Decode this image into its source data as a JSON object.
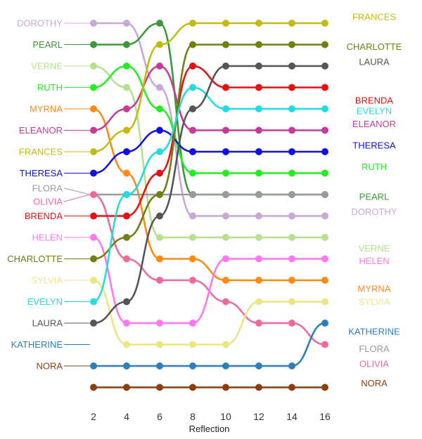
{
  "chart_data": {
    "type": "line",
    "subtype": "bump",
    "title": "",
    "xlabel": "Reflection",
    "ylabel": "",
    "x": [
      2,
      4,
      6,
      8,
      10,
      12,
      14,
      16
    ],
    "xticks": [
      2,
      4,
      6,
      8,
      10,
      12,
      14,
      16
    ],
    "rank_order": "1 = top",
    "grid": false,
    "legend": "direct labels at both ends",
    "series": [
      {
        "name": "DOROTHY",
        "color": "#c7a8d6",
        "ranks": [
          1,
          1,
          4,
          10,
          10,
          10,
          10,
          10
        ]
      },
      {
        "name": "PEARL",
        "color": "#3a9a3a",
        "ranks": [
          2,
          2,
          1,
          9,
          9,
          9,
          9,
          9
        ]
      },
      {
        "name": "VERNE",
        "color": "#b5e08c",
        "ranks": [
          3,
          4,
          11,
          11,
          11,
          11,
          11,
          11
        ]
      },
      {
        "name": "RUTH",
        "color": "#22ee22",
        "ranks": [
          4,
          3,
          5,
          8,
          8,
          8,
          8,
          8
        ]
      },
      {
        "name": "MYRNA",
        "color": "#ff8a12",
        "ranks": [
          5,
          8,
          12,
          12,
          13,
          13,
          13,
          13
        ]
      },
      {
        "name": "ELEANOR",
        "color": "#c43c96",
        "ranks": [
          6,
          5,
          3,
          6,
          6,
          6,
          6,
          6
        ]
      },
      {
        "name": "FRANCES",
        "color": "#c2bc12",
        "ranks": [
          7,
          6,
          2,
          1,
          1,
          1,
          1,
          1
        ]
      },
      {
        "name": "THERESA",
        "color": "#1010e0",
        "ranks": [
          8,
          7,
          6,
          7,
          7,
          7,
          7,
          7
        ]
      },
      {
        "name": "FLORA",
        "color": "#9a9a9a",
        "ranks": [
          9,
          9,
          9,
          9,
          9,
          9,
          9,
          9
        ]
      },
      {
        "name": "OLIVIA",
        "color": "#ee6a9c",
        "ranks": [
          9,
          12,
          13,
          13,
          14,
          15,
          15,
          16
        ]
      },
      {
        "name": "BRENDA",
        "color": "#e81010",
        "ranks": [
          10,
          10,
          8,
          3,
          4,
          4,
          4,
          4
        ]
      },
      {
        "name": "HELEN",
        "color": "#ff77ee",
        "ranks": [
          11,
          15,
          15,
          15,
          12,
          12,
          12,
          12
        ]
      },
      {
        "name": "CHARLOTTE",
        "color": "#6f7f10",
        "ranks": [
          12,
          11,
          9,
          2,
          2,
          2,
          2,
          2
        ]
      },
      {
        "name": "SYLVIA",
        "color": "#ece682",
        "ranks": [
          13,
          16,
          16,
          16,
          16,
          14,
          14,
          14
        ]
      },
      {
        "name": "EVELYN",
        "color": "#22dddd",
        "ranks": [
          14,
          9,
          7,
          4,
          5,
          5,
          5,
          5
        ]
      },
      {
        "name": "LAURA",
        "color": "#555555",
        "ranks": [
          15,
          14,
          10,
          5,
          3,
          3,
          3,
          3
        ]
      },
      {
        "name": "KATHERINE",
        "color": "#2a7fc0",
        "ranks": [
          17,
          17,
          17,
          17,
          17,
          17,
          17,
          15
        ]
      },
      {
        "name": "NORA",
        "color": "#8b3e0e",
        "ranks": [
          18,
          18,
          18,
          18,
          18,
          18,
          18,
          18
        ]
      }
    ],
    "left_labels": [
      {
        "name": "DOROTHY",
        "rank": 1
      },
      {
        "name": "PEARL",
        "rank": 2
      },
      {
        "name": "VERNE",
        "rank": 3
      },
      {
        "name": "RUTH",
        "rank": 4
      },
      {
        "name": "MYRNA",
        "rank": 5
      },
      {
        "name": "ELEANOR",
        "rank": 6
      },
      {
        "name": "FRANCES",
        "rank": 7
      },
      {
        "name": "THERESA",
        "rank": 8
      },
      {
        "name": "FLORA",
        "rank": 9,
        "offset": "above"
      },
      {
        "name": "OLIVIA",
        "rank": 9,
        "offset": "below"
      },
      {
        "name": "BRENDA",
        "rank": 10
      },
      {
        "name": "HELEN",
        "rank": 11
      },
      {
        "name": "CHARLOTTE",
        "rank": 12
      },
      {
        "name": "SYLVIA",
        "rank": 13
      },
      {
        "name": "EVELYN",
        "rank": 14
      },
      {
        "name": "LAURA",
        "rank": 15
      },
      {
        "name": "KATHERINE",
        "rank": 16
      },
      {
        "name": "NORA",
        "rank": 17
      }
    ],
    "right_labels": [
      {
        "name": "FRANCES",
        "rank": 0.7
      },
      {
        "name": "CHARLOTTE",
        "rank": 2.1
      },
      {
        "name": "LAURA",
        "rank": 2.8
      },
      {
        "name": "BRENDA",
        "rank": 4.6
      },
      {
        "name": "EVELYN",
        "rank": 5.1
      },
      {
        "name": "ELEANOR",
        "rank": 5.7
      },
      {
        "name": "THERESA",
        "rank": 6.7
      },
      {
        "name": "RUTH",
        "rank": 7.7
      },
      {
        "name": "PEARL",
        "rank": 9.1
      },
      {
        "name": "DOROTHY",
        "rank": 9.8
      },
      {
        "name": "VERNE",
        "rank": 11.5
      },
      {
        "name": "HELEN",
        "rank": 12.1
      },
      {
        "name": "MYRNA",
        "rank": 13.4
      },
      {
        "name": "SYLVIA",
        "rank": 14.0
      },
      {
        "name": "KATHERINE",
        "rank": 15.4
      },
      {
        "name": "FLORA",
        "rank": 16.2
      },
      {
        "name": "OLIVIA",
        "rank": 16.9
      },
      {
        "name": "NORA",
        "rank": 17.8
      }
    ]
  }
}
